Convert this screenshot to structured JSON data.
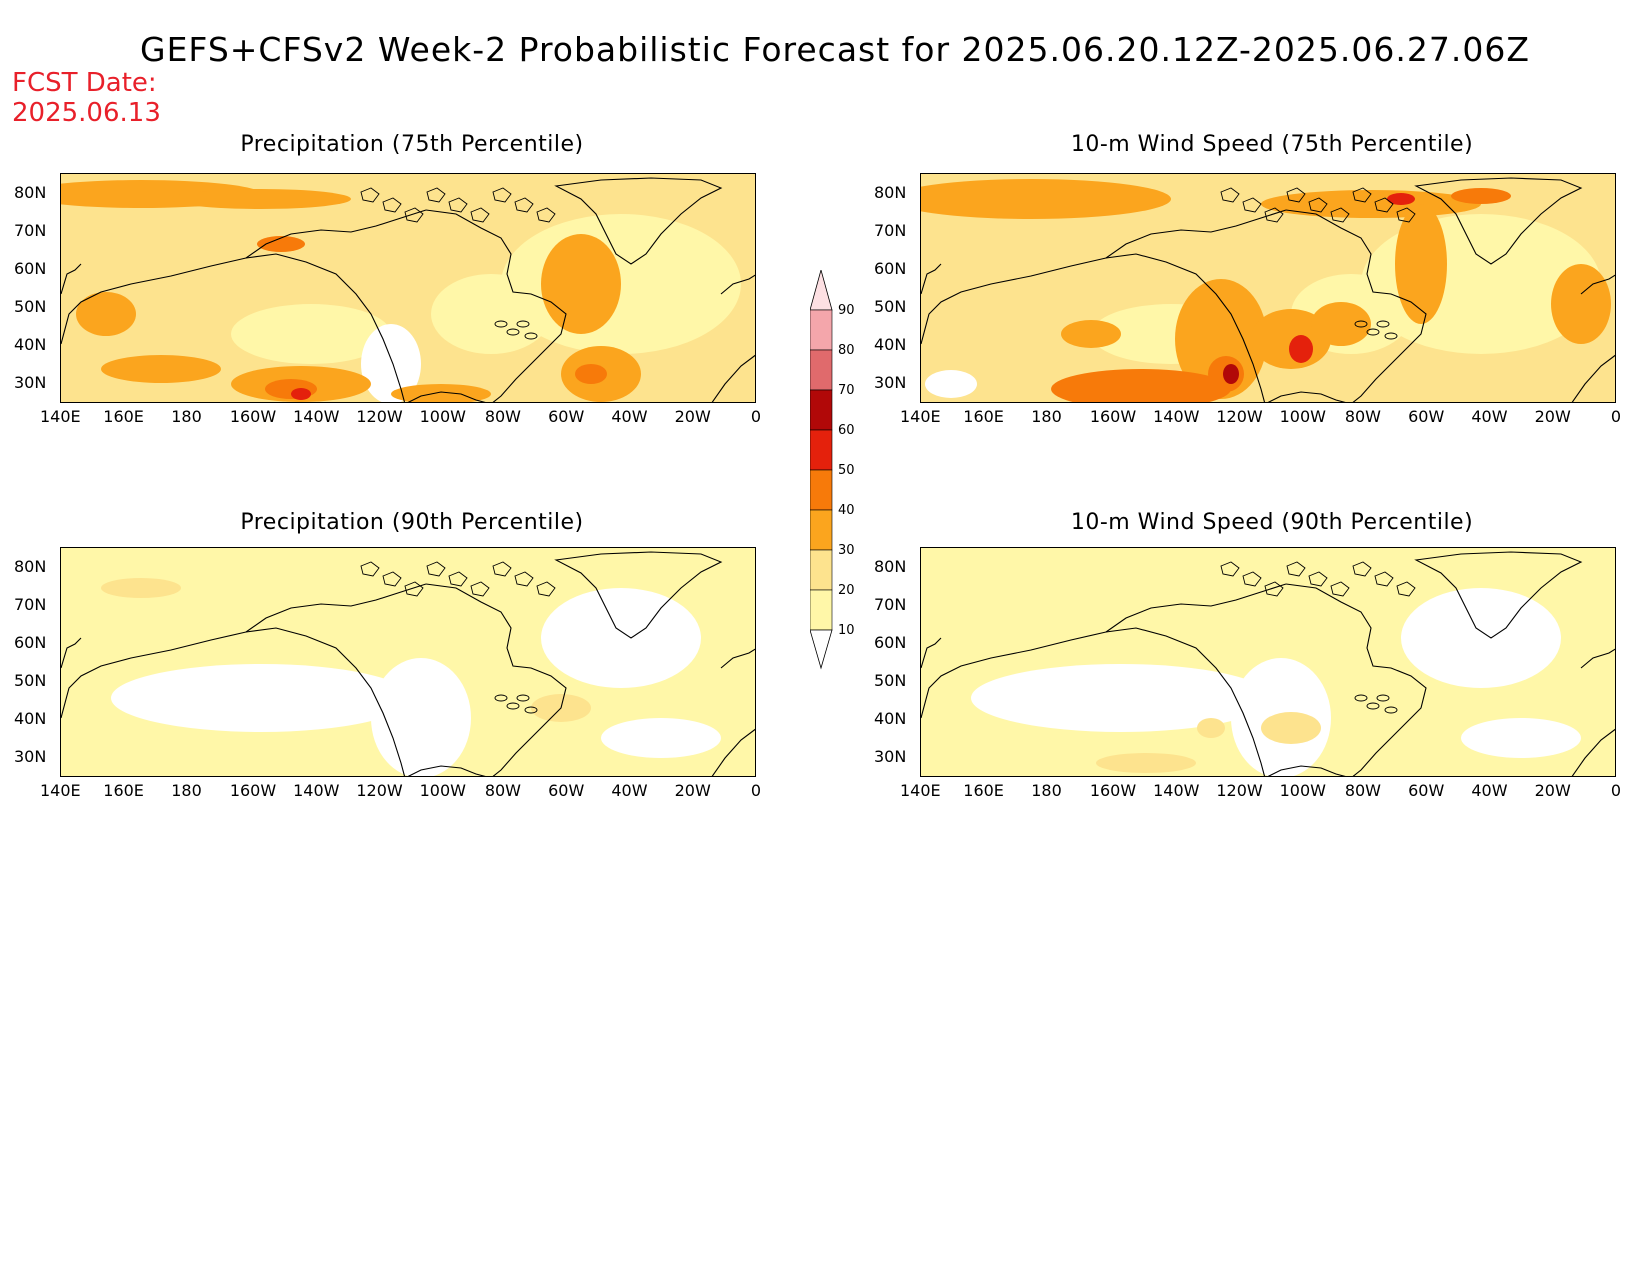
{
  "title": "GEFS+CFSv2 Week-2 Probabilistic Forecast for 2025.06.20.12Z-2025.06.27.06Z",
  "fcst_date": {
    "label": "FCST Date:",
    "value": "2025.06.13"
  },
  "panels": [
    {
      "id": "precip-75",
      "title": "Precipitation (75th Percentile)"
    },
    {
      "id": "wind-75",
      "title": "10-m Wind Speed (75th Percentile)"
    },
    {
      "id": "precip-90",
      "title": "Precipitation (90th Percentile)"
    },
    {
      "id": "wind-90",
      "title": "10-m Wind Speed (90th Percentile)"
    }
  ],
  "axes": {
    "lon_labels": [
      "140E",
      "160E",
      "180",
      "160W",
      "140W",
      "120W",
      "100W",
      "80W",
      "60W",
      "40W",
      "20W",
      "0"
    ],
    "lat_labels": [
      "80N",
      "70N",
      "60N",
      "50N",
      "40N",
      "30N"
    ]
  },
  "colorbar": {
    "levels": [
      "10",
      "20",
      "30",
      "40",
      "50",
      "60",
      "70",
      "80",
      "90"
    ],
    "colors": [
      "#fff7a8",
      "#fde38e",
      "#fba51e",
      "#f77a0a",
      "#e4210c",
      "#b10808",
      "#e06a6c",
      "#f4a6ab",
      "#fde0e3"
    ]
  }
}
